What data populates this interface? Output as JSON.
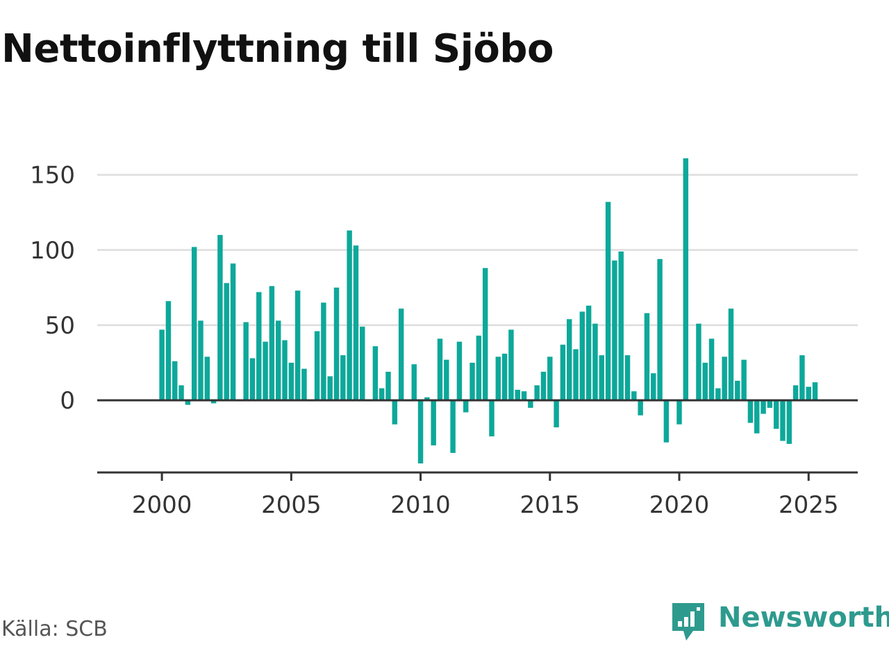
{
  "chart_data": {
    "type": "bar",
    "title": "Nettoinflyttning till Sjöbo",
    "xlabel": "",
    "ylabel": "",
    "x_start": 2000.0,
    "x_step": 0.25,
    "values": [
      47,
      66,
      26,
      10,
      -3,
      102,
      53,
      29,
      -2,
      110,
      78,
      91,
      null,
      52,
      28,
      72,
      39,
      76,
      53,
      40,
      25,
      73,
      21,
      null,
      46,
      65,
      16,
      75,
      30,
      113,
      103,
      49,
      null,
      36,
      8,
      19,
      -16,
      61,
      null,
      24,
      -42,
      2,
      -30,
      41,
      27,
      -35,
      39,
      -8,
      25,
      43,
      88,
      -24,
      29,
      31,
      47,
      7,
      6,
      -5,
      10,
      19,
      29,
      -18,
      37,
      54,
      34,
      59,
      63,
      51,
      30,
      132,
      93,
      99,
      30,
      6,
      -10,
      58,
      18,
      94,
      -28,
      null,
      -16,
      161,
      null,
      51,
      25,
      41,
      8,
      29,
      61,
      13,
      27,
      -15,
      -22,
      -9,
      -5,
      -19,
      -27,
      -29,
      10,
      30,
      9,
      12
    ],
    "ylim": [
      -48,
      160
    ],
    "xlim": [
      1997.5,
      2026.9
    ],
    "yticks": [
      0,
      50,
      100,
      150
    ],
    "xticks": [
      2000,
      2005,
      2010,
      2015,
      2020,
      2025
    ],
    "grid": true,
    "bar_color": "#0da89a"
  },
  "source": "Källa: SCB",
  "brand": {
    "name": "Newsworthy",
    "color": "#2e9a8e"
  }
}
